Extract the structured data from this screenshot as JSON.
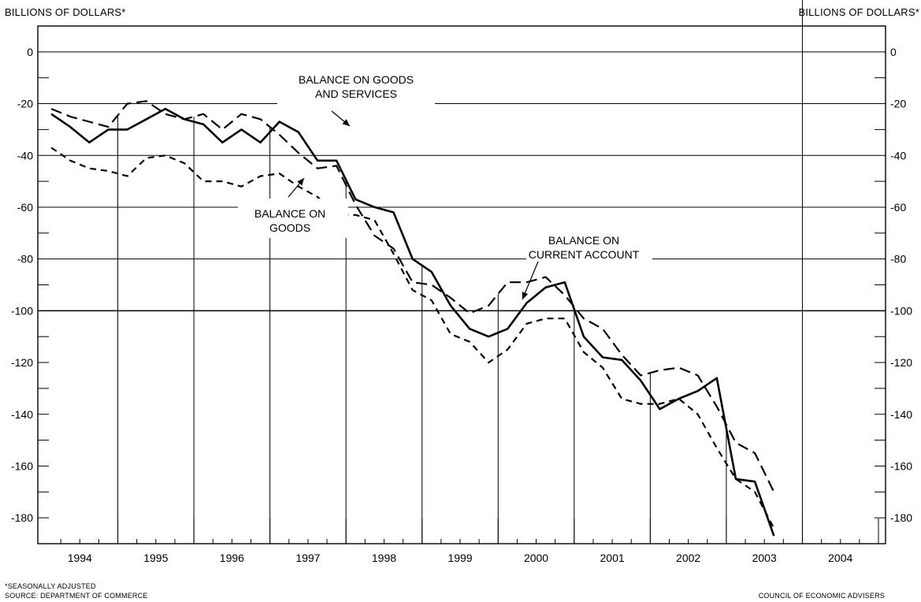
{
  "header": {
    "left_unit": "BILLIONS OF DOLLARS*",
    "right_unit": "BILLIONS OF DOLLARS*"
  },
  "footer": {
    "note": "*SEASONALLY ADJUSTED",
    "source": "SOURCE: DEPARTMENT OF COMMERCE",
    "credit": "COUNCIL OF ECONOMIC ADVISERS"
  },
  "chart_data": {
    "type": "line",
    "title": "",
    "xlabel": "",
    "ylabel": "BILLIONS OF DOLLARS*",
    "ylim": [
      -190,
      10
    ],
    "yticks": [
      0,
      -20,
      -40,
      -60,
      -80,
      -100,
      -120,
      -140,
      -160,
      -180
    ],
    "ytick_labels": [
      "0",
      "-20",
      "-40",
      "-60",
      "-80",
      "-100",
      "-120",
      "-140",
      "-160",
      "-180"
    ],
    "years": [
      "1994",
      "1995",
      "1996",
      "1997",
      "1998",
      "1999",
      "2000",
      "2001",
      "2002",
      "2003",
      "2004"
    ],
    "quarters_per_year": 4,
    "grid": "horizontal at -20, -40, -60, -80, -100; vertical at year boundaries",
    "legend": "inline annotations",
    "series": [
      {
        "name": "BALANCE ON GOODS AND SERVICES",
        "style": "long-dash",
        "values": [
          -22,
          -25,
          -27,
          -29,
          -20,
          -19,
          -24,
          -26,
          -24,
          -30,
          -24,
          -26,
          -32,
          -39,
          -45,
          -44,
          -59,
          -71,
          -76,
          -89,
          -90,
          -95,
          -101,
          -98,
          -89,
          -89,
          -87,
          -94,
          -103,
          -107,
          -117,
          -125,
          -123,
          -122,
          -125,
          -137,
          -151,
          -155,
          -170
        ]
      },
      {
        "name": "BALANCE ON CURRENT ACCOUNT",
        "style": "solid",
        "values": [
          -24,
          -29,
          -35,
          -30,
          -30,
          -26,
          -22,
          -26,
          -28,
          -35,
          -30,
          -35,
          -27,
          -31,
          -42,
          -42,
          -57,
          -60,
          -62,
          -80,
          -85,
          -98,
          -107,
          -110,
          -107,
          -97,
          -91,
          -89,
          -110,
          -118,
          -119,
          -127,
          -138,
          -134,
          -131,
          -126,
          -165,
          -166,
          -187
        ]
      },
      {
        "name": "BALANCE ON GOODS",
        "style": "short-dash",
        "values": [
          -37,
          -42,
          -45,
          -46,
          -48,
          -41,
          -40,
          -43,
          -50,
          -50,
          -52,
          -48,
          -47,
          -52,
          -56,
          -63,
          -63,
          -65,
          -78,
          -92,
          -96,
          -109,
          -112,
          -120,
          -115,
          -105,
          -103,
          -103,
          -116,
          -122,
          -134,
          -136,
          -136,
          -134,
          -140,
          -153,
          -165,
          -170,
          -184
        ]
      }
    ],
    "annotations": [
      {
        "lines": [
          "BALANCE ON GOODS",
          "AND SERVICES"
        ]
      },
      {
        "lines": [
          "BALANCE ON",
          "GOODS"
        ]
      },
      {
        "lines": [
          "BALANCE ON",
          "CURRENT ACCOUNT"
        ]
      }
    ]
  }
}
